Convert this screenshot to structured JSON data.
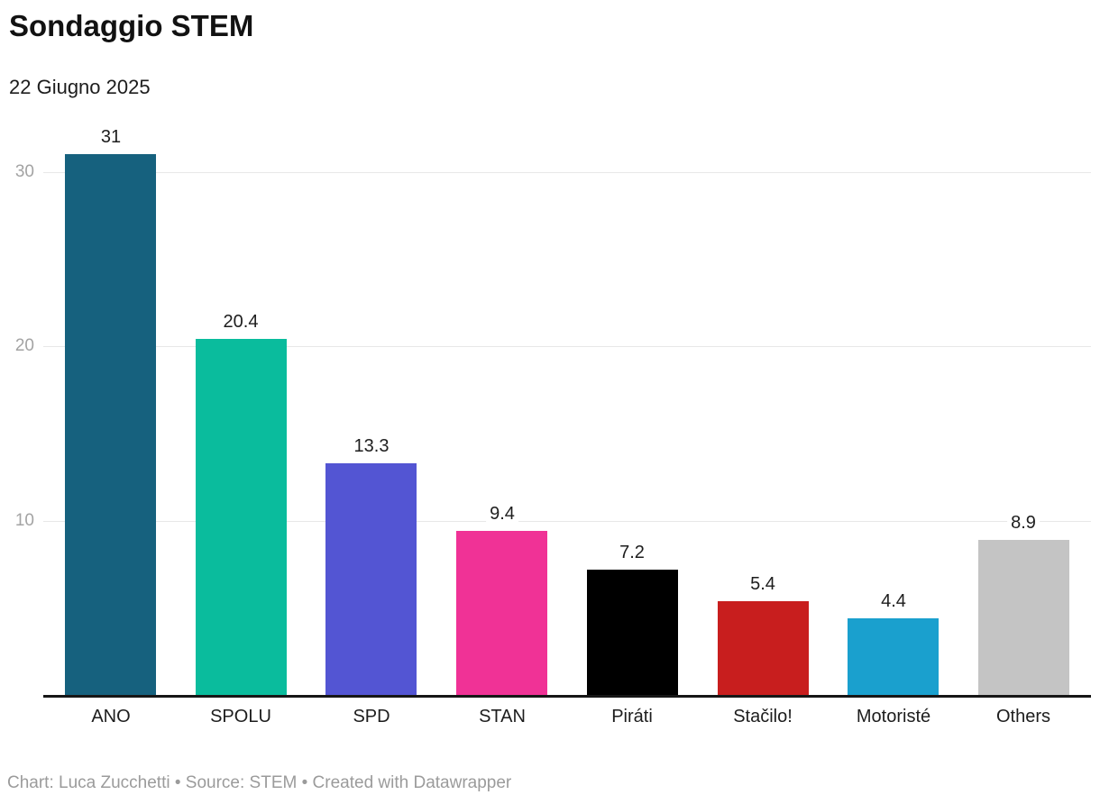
{
  "header": {
    "title": "Sondaggio STEM",
    "subtitle": "22 Giugno 2025"
  },
  "footer": {
    "text": "Chart: Luca Zucchetti • Source: STEM • Created with Datawrapper"
  },
  "chart_data": {
    "type": "bar",
    "title": "Sondaggio STEM",
    "subtitle": "22 Giugno 2025",
    "categories": [
      "ANO",
      "SPOLU",
      "SPD",
      "STAN",
      "Piráti",
      "Stačilo!",
      "Motoristé",
      "Others"
    ],
    "values": [
      31,
      20.4,
      13.3,
      9.4,
      7.2,
      5.4,
      4.4,
      8.9
    ],
    "value_labels": [
      "31",
      "20.4",
      "13.3",
      "9.4",
      "7.2",
      "5.4",
      "4.4",
      "8.9"
    ],
    "bar_colors": [
      "#16617e",
      "#0abc9d",
      "#5355d3",
      "#f03296",
      "#000000",
      "#c81e1e",
      "#1aa0ce",
      "#c4c4c4"
    ],
    "yticks": [
      10,
      20,
      30
    ],
    "ylim": [
      0,
      32
    ],
    "xlabel": "",
    "ylabel": "",
    "grid": "horizontal",
    "legend": "none"
  },
  "colors": {
    "grid": "#e8e8e8",
    "axis_tick_text": "#a3a3a3",
    "baseline": "#161616",
    "label_text": "#1d1d1d",
    "footer_text": "#9b9b9b"
  }
}
